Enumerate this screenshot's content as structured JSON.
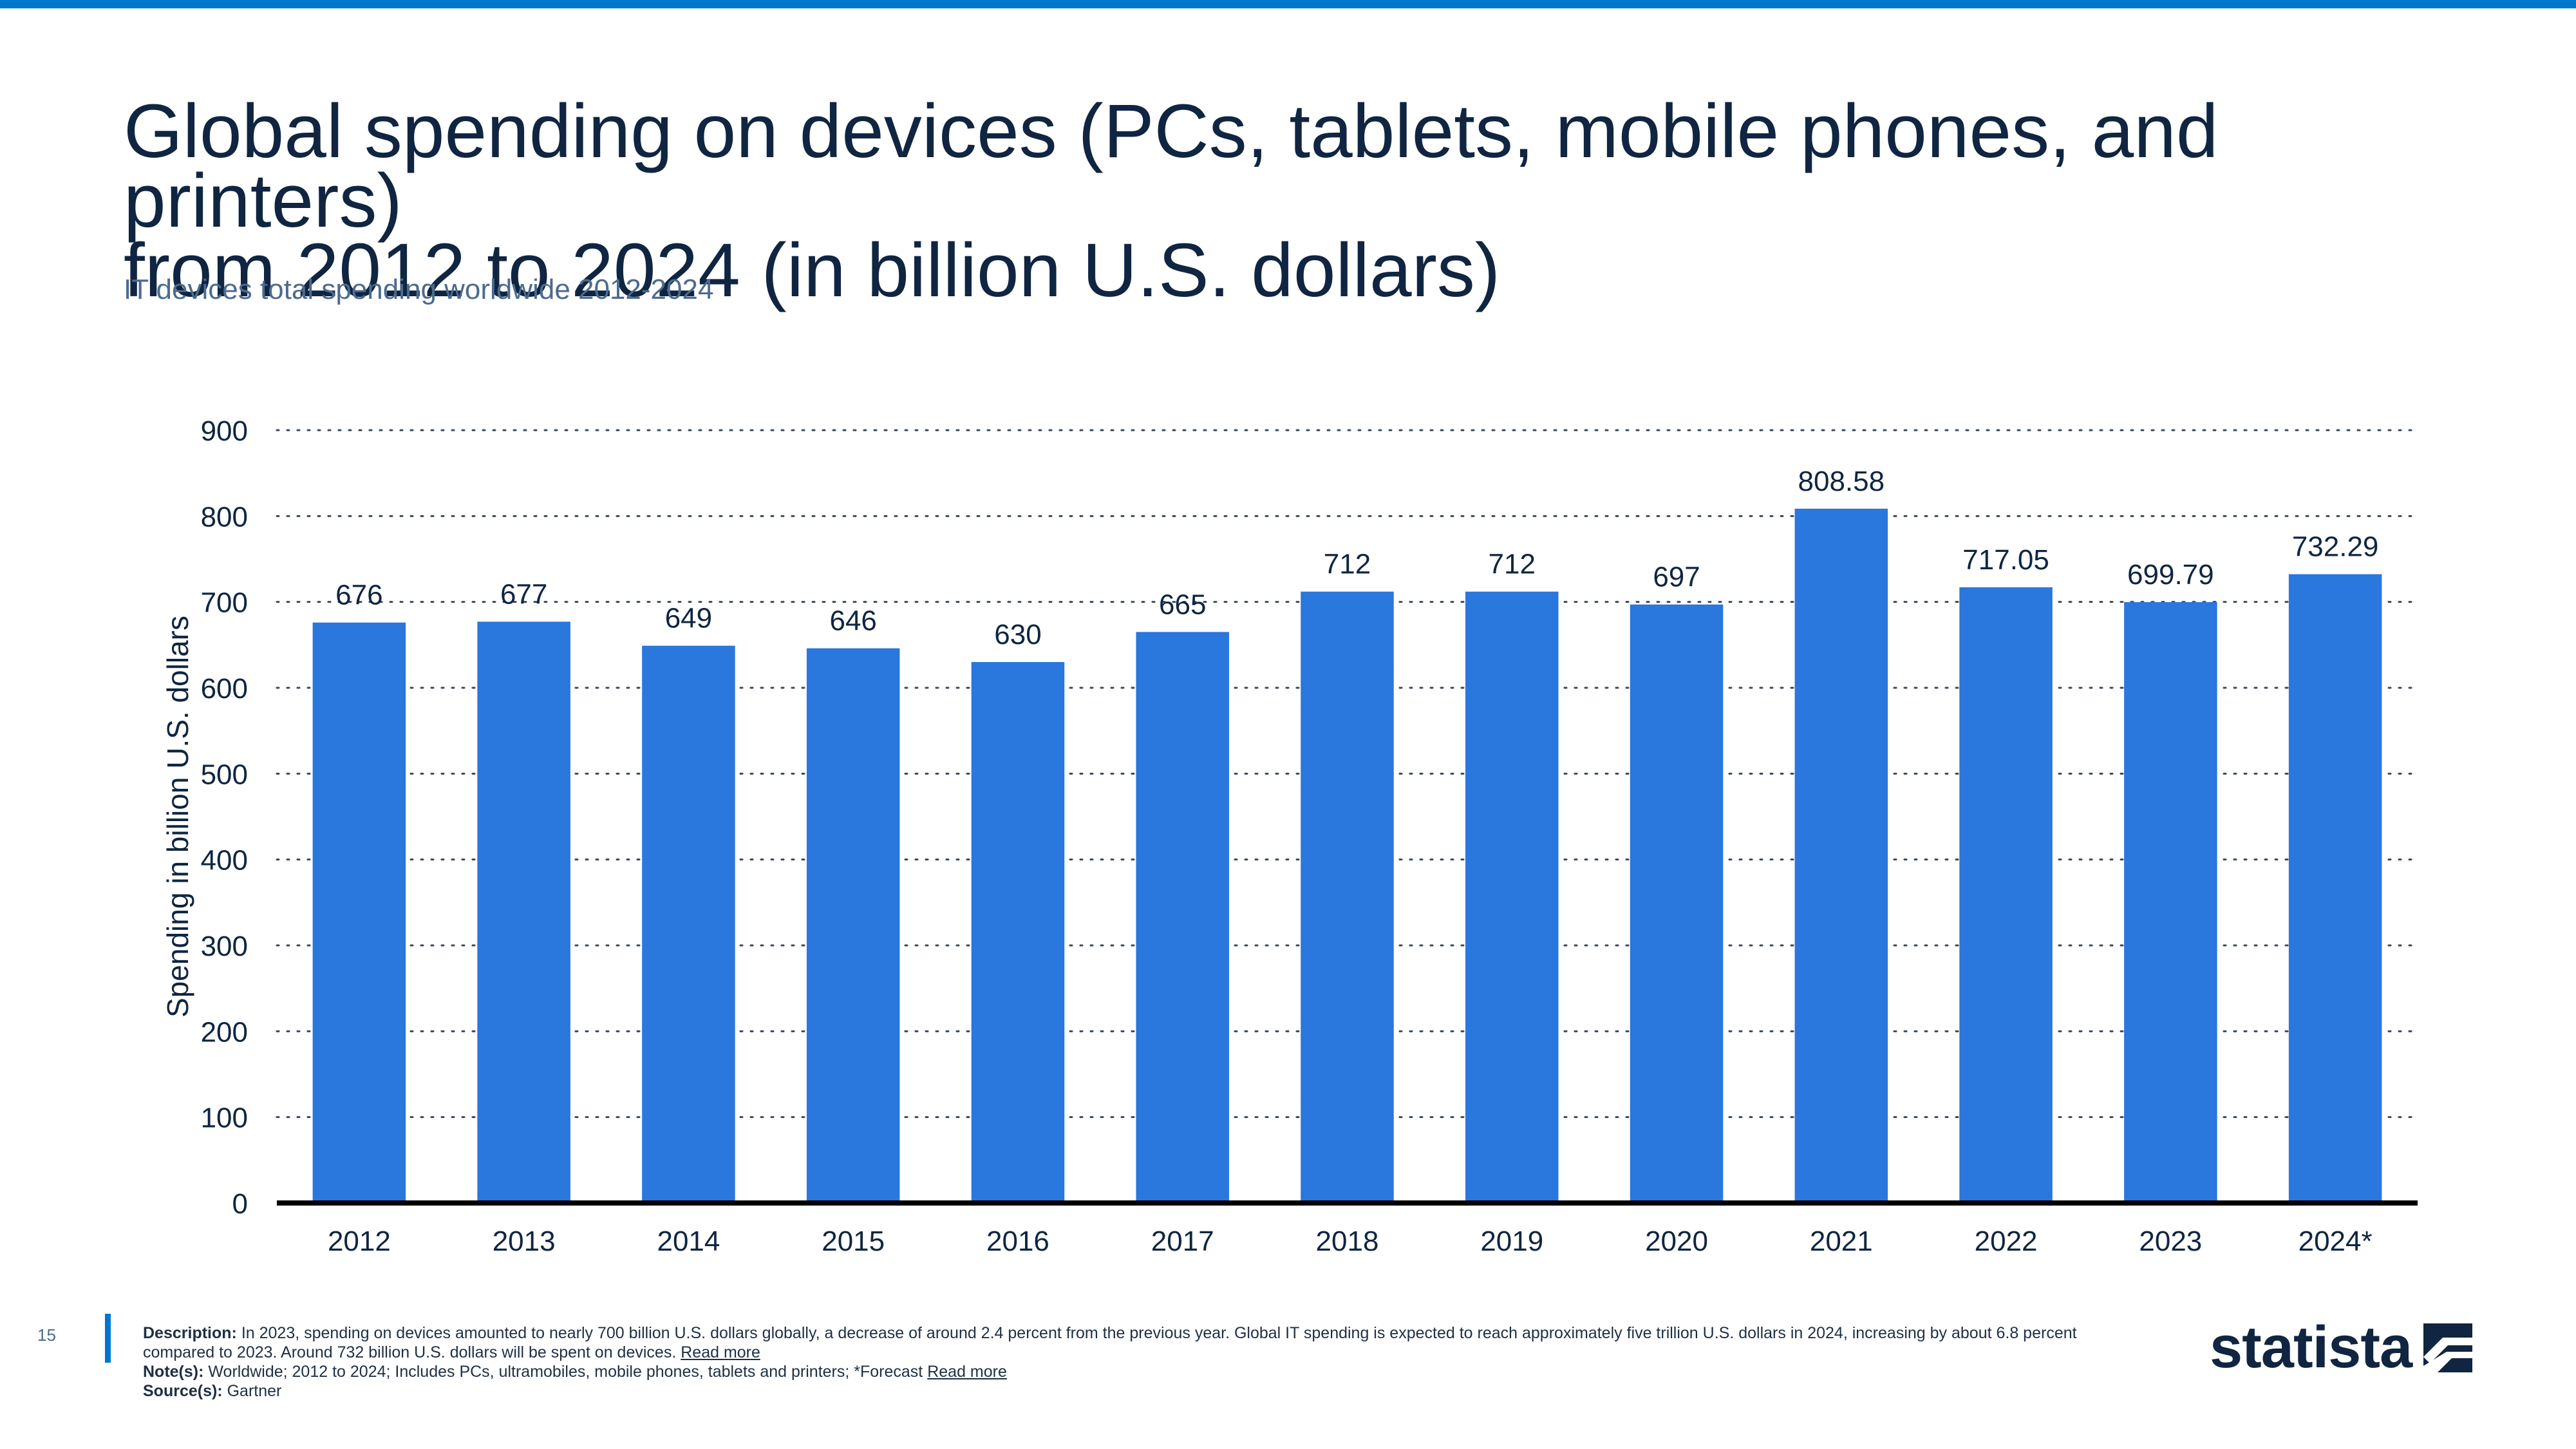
{
  "header": {
    "title_line1": "Global spending on devices (PCs, tablets, mobile phones, and printers)",
    "title_line2": "from 2012 to 2024 (in billion U.S. dollars)",
    "subtitle": "IT devices total spending worldwide 2012-2024"
  },
  "colors": {
    "bar": "#2a77dd",
    "accent": "#0077cc",
    "text": "#0f2541"
  },
  "chart_data": {
    "type": "bar",
    "categories": [
      "2012",
      "2013",
      "2014",
      "2015",
      "2016",
      "2017",
      "2018",
      "2019",
      "2020",
      "2021",
      "2022",
      "2023",
      "2024*"
    ],
    "values": [
      676,
      677,
      649,
      646,
      630,
      665,
      712,
      712,
      697,
      808.58,
      717.05,
      699.79,
      732.29
    ],
    "value_labels": [
      "676",
      "677",
      "649",
      "646",
      "630",
      "665",
      "712",
      "712",
      "697",
      "808.58",
      "717.05",
      "699.79",
      "732.29"
    ],
    "ylabel": "Spending in billion U.S. dollars",
    "ylim": [
      0,
      900
    ],
    "yticks": [
      0,
      100,
      200,
      300,
      400,
      500,
      600,
      700,
      800,
      900
    ],
    "grid": true,
    "legend": "none"
  },
  "footer": {
    "page_number": "15",
    "description_label": "Description:",
    "description_text": "In 2023, spending on devices amounted to nearly 700 billion U.S. dollars globally, a decrease of around 2.4 percent from the previous year. Global IT spending is expected to reach approximately five trillion U.S. dollars in 2024, increasing by about 6.8 percent compared to 2023. Around 732 billion U.S. dollars will be spent on devices.",
    "read_more_1": "Read more",
    "notes_label": "Note(s):",
    "notes_text": "Worldwide; 2012 to 2024; Includes PCs, ultramobiles, mobile phones, tablets and printers; *Forecast",
    "read_more_2": "Read more",
    "source_label": "Source(s):",
    "source_text": "Gartner"
  },
  "logo": {
    "text": "statista"
  }
}
